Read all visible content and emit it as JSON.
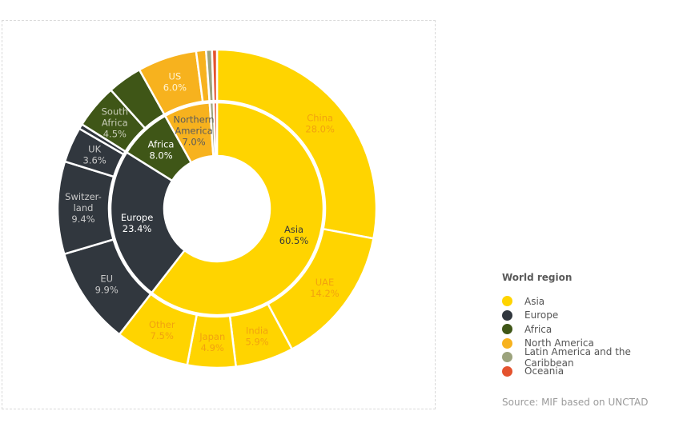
{
  "chart_data": {
    "type": "sunburst",
    "start": "top",
    "direction": "clockwise",
    "regions": [
      {
        "name": "Asia",
        "value": 60.5,
        "label": [
          "Asia",
          "60.5%"
        ],
        "color": "#FFD400",
        "label_color": "#3a3a3a",
        "children": [
          {
            "name": "China",
            "value": 28.0,
            "label": [
              "China",
              "28.0%"
            ]
          },
          {
            "name": "UAE",
            "value": 14.2,
            "label": [
              "UAE",
              "14.2%"
            ]
          },
          {
            "name": "India",
            "value": 5.9,
            "label": [
              "India",
              "5.9%"
            ]
          },
          {
            "name": "Japan",
            "value": 4.9,
            "label": [
              "Japan",
              "4.9%"
            ]
          },
          {
            "name": "Other",
            "value": 7.5,
            "label": [
              "Other",
              "7.5%"
            ]
          }
        ],
        "child_label_color": "#F2A20F"
      },
      {
        "name": "Europe",
        "value": 23.4,
        "label": [
          "Europe",
          "23.4%"
        ],
        "color": "#31373E",
        "label_color": "#ffffff",
        "children": [
          {
            "name": "EU",
            "value": 9.9,
            "label": [
              "EU",
              "9.9%"
            ]
          },
          {
            "name": "Switzerland",
            "value": 9.4,
            "label": [
              "Switzer-",
              "land",
              "9.4%"
            ]
          },
          {
            "name": "UK",
            "value": 3.6,
            "label": [
              "UK",
              "3.6%"
            ]
          },
          {
            "name": "",
            "value": 0.5,
            "label": []
          }
        ],
        "child_label_color": "#c8c8c8"
      },
      {
        "name": "Africa",
        "value": 8.0,
        "label": [
          "Africa",
          "8.0%"
        ],
        "color": "#3F5617",
        "label_color": "#ffffff",
        "children": [
          {
            "name": "South Africa",
            "value": 4.5,
            "label": [
              "South",
              "Africa",
              "4.5%"
            ]
          },
          {
            "name": "",
            "value": 3.5,
            "label": []
          }
        ],
        "child_label_color": "#c8ccb8"
      },
      {
        "name": "Northern America",
        "value": 7.0,
        "label": [
          "Northern",
          "America",
          "7.0%"
        ],
        "color": "#F7B21E",
        "label_color": "#5a5a5a",
        "children": [
          {
            "name": "US",
            "value": 6.0,
            "label": [
              "US",
              "6.0%"
            ]
          },
          {
            "name": "",
            "value": 1.0,
            "label": []
          }
        ],
        "child_label_color": "#fff3d0"
      },
      {
        "name": "Latin America and the Caribbean",
        "value": 0.6,
        "label": [],
        "color": "#9CA37D",
        "children": [
          {
            "name": "",
            "value": 0.6,
            "label": []
          }
        ]
      },
      {
        "name": "Oceania",
        "value": 0.5,
        "label": [],
        "color": "#E4532E",
        "children": [
          {
            "name": "",
            "value": 0.5,
            "label": []
          }
        ]
      }
    ]
  },
  "legend": {
    "title": "World region",
    "items": [
      {
        "label": "Asia",
        "color": "#FFD400"
      },
      {
        "label": "Europe",
        "color": "#31373E"
      },
      {
        "label": "Africa",
        "color": "#3F5617"
      },
      {
        "label": "North America",
        "color": "#F7B21E"
      },
      {
        "label": "Latin America and the Caribbean",
        "color": "#9CA37D"
      },
      {
        "label": "Oceania",
        "color": "#E4532E"
      }
    ]
  },
  "source": "Source: MIF based on UNCTAD"
}
